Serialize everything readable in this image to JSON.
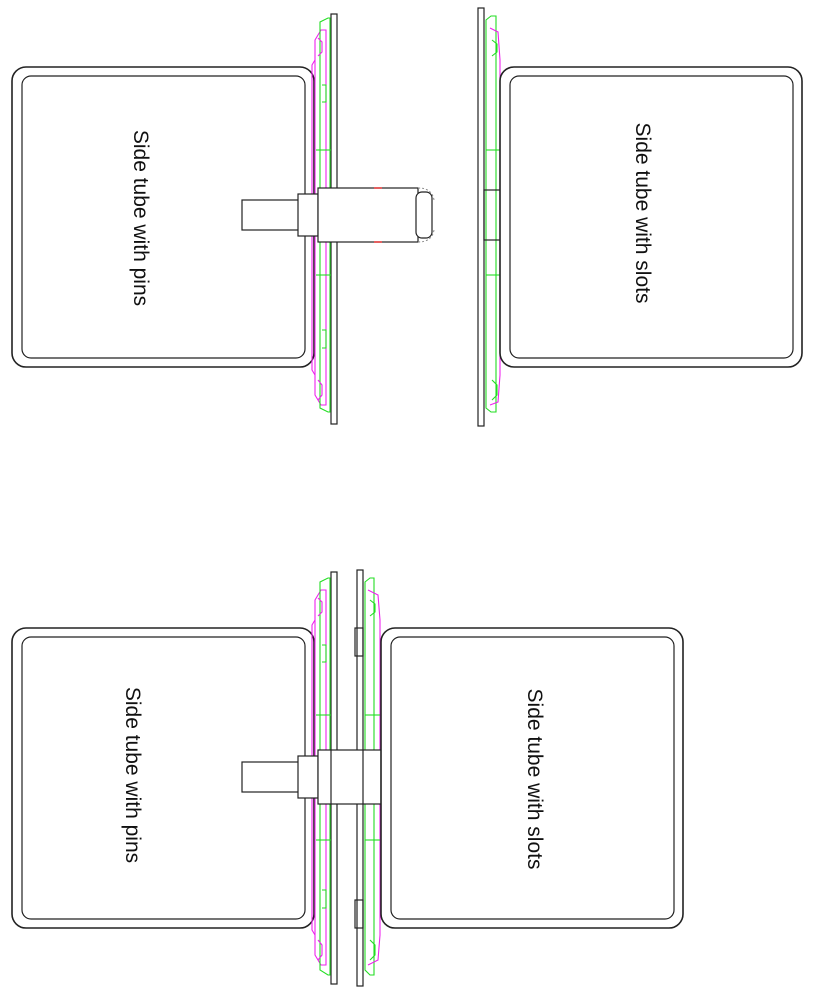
{
  "labels": {
    "top_left": "Side tube with pins",
    "top_right": "Side tube with slots",
    "bottom_left": "Side tube with pins",
    "bottom_right": "Side tube with slots"
  },
  "colors": {
    "outline": "#222222",
    "green_part": "#22dd22",
    "magenta_part": "#ee22ee",
    "red_marks": "#ee2222"
  }
}
